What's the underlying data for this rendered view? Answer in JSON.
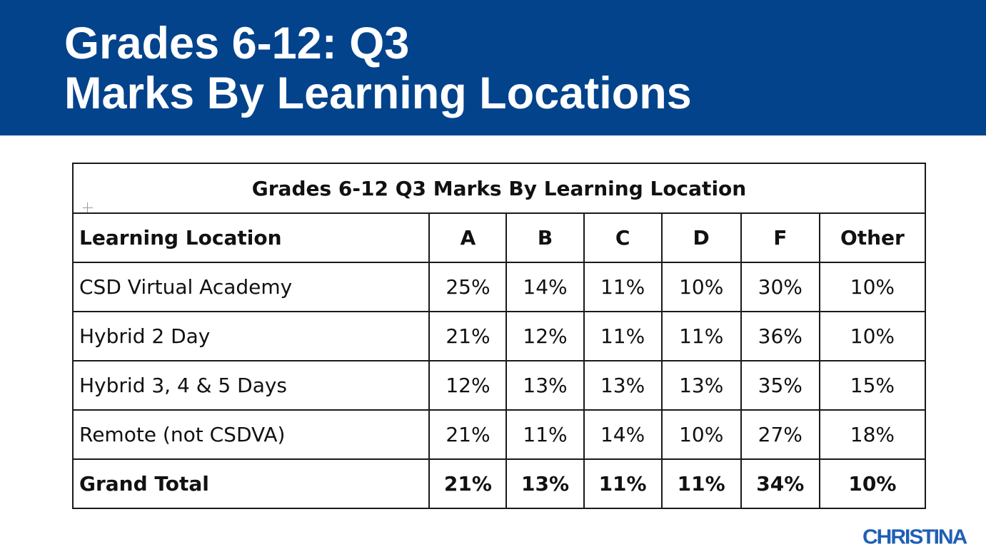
{
  "slide": {
    "title_line1": "Grades 6-12: Q3",
    "title_line2": "Marks By Learning Locations",
    "banner_color": "#03438c",
    "logo_text": "CHRISTINA",
    "logo_color": "#1f5fb5"
  },
  "table": {
    "caption": "Grades 6-12 Q3 Marks By Learning Location",
    "headers": [
      "Learning Location",
      "A",
      "B",
      "C",
      "D",
      "F",
      "Other"
    ],
    "rows": [
      {
        "location": "CSD Virtual Academy",
        "values": [
          "25%",
          "14%",
          "11%",
          "10%",
          "30%",
          "10%"
        ]
      },
      {
        "location": "Hybrid 2 Day",
        "values": [
          "21%",
          "12%",
          "11%",
          "11%",
          "36%",
          "10%"
        ]
      },
      {
        "location": "Hybrid 3, 4 & 5 Days",
        "values": [
          "12%",
          "13%",
          "13%",
          "13%",
          "35%",
          "15%"
        ]
      },
      {
        "location": "Remote (not CSDVA)",
        "values": [
          "21%",
          "11%",
          "14%",
          "10%",
          "27%",
          "18%"
        ]
      }
    ],
    "total": {
      "location": "Grand Total",
      "values": [
        "21%",
        "13%",
        "11%",
        "11%",
        "34%",
        "10%"
      ]
    }
  }
}
